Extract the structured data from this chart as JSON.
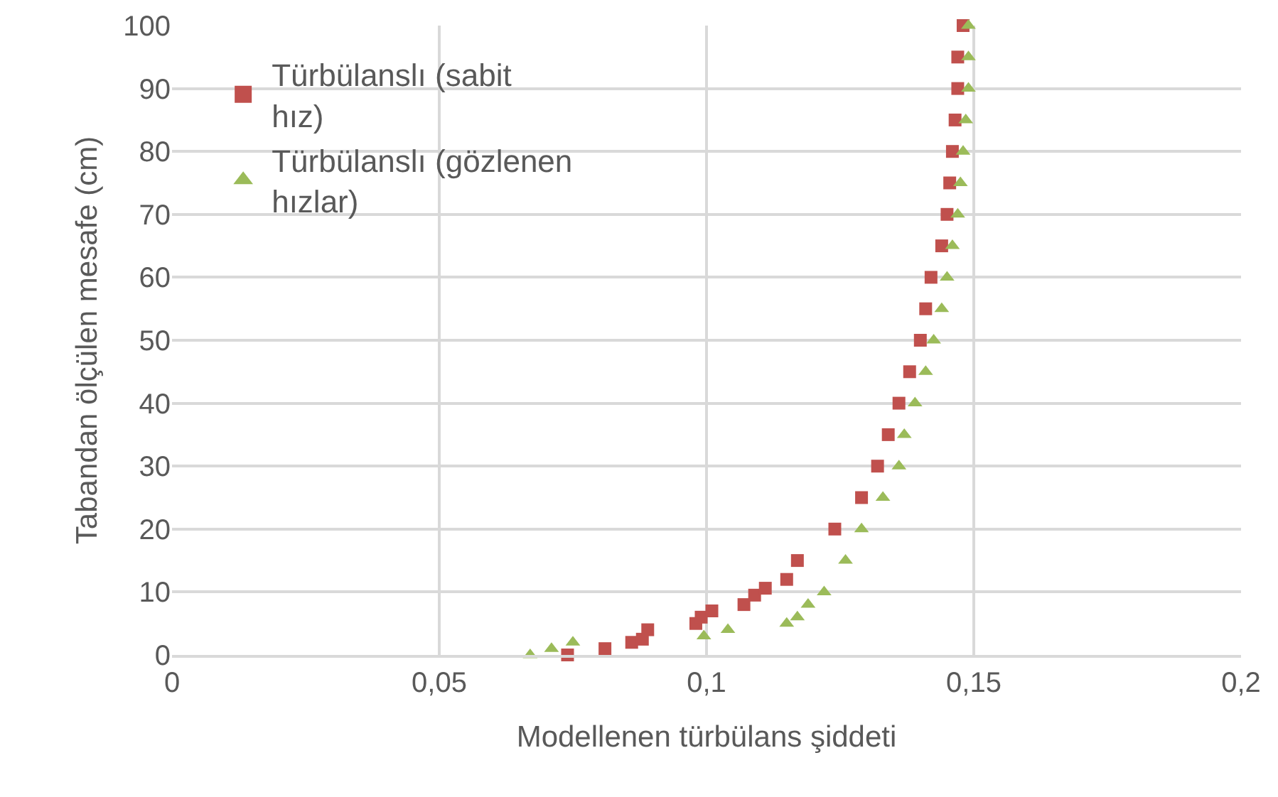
{
  "chart_data": {
    "type": "scatter",
    "xlabel": "Modellenen türbülans şiddeti",
    "ylabel": "Tabandan ölçülen mesafe (cm)",
    "xlim": [
      0,
      0.2
    ],
    "xticks": [
      0,
      {
        "value": 0.05,
        "label": "0,05"
      },
      {
        "value": 0.1,
        "label": "0,1"
      },
      {
        "value": 0.15,
        "label": "0,15"
      },
      {
        "value": 0.2,
        "label": "0,2"
      }
    ],
    "ylim": [
      0,
      100
    ],
    "yticks": [
      0,
      10,
      20,
      30,
      40,
      50,
      60,
      70,
      80,
      90,
      100
    ],
    "grid": true,
    "legend": "top left",
    "series": [
      {
        "name": "Türbülanslı (sabit hız)",
        "color": "#c0504d",
        "marker": "square",
        "x": [
          0.074,
          0.081,
          0.086,
          0.088,
          0.089,
          0.098,
          0.099,
          0.101,
          0.107,
          0.109,
          0.111,
          0.115,
          0.117,
          0.124,
          0.129,
          0.132,
          0.134,
          0.136,
          0.138,
          0.14,
          0.141,
          0.142,
          0.144,
          0.145,
          0.1455,
          0.146,
          0.1465,
          0.147,
          0.147,
          0.148
        ],
        "values": [
          0,
          1,
          2,
          2.5,
          4,
          5,
          6,
          7,
          8,
          9.5,
          10.6,
          12,
          15,
          20,
          25,
          30,
          35,
          40,
          45,
          50,
          55,
          60,
          65,
          70,
          75,
          80,
          85,
          90,
          95,
          100
        ]
      },
      {
        "name": "Türbülanslı (gözlenen hızlar)",
        "color": "#9bbb59",
        "marker": "triangle",
        "x": [
          0.067,
          0.071,
          0.075,
          0.0995,
          0.104,
          0.115,
          0.117,
          0.119,
          0.122,
          0.126,
          0.129,
          0.133,
          0.136,
          0.137,
          0.139,
          0.141,
          0.1425,
          0.144,
          0.145,
          0.146,
          0.147,
          0.1475,
          0.148,
          0.1485,
          0.149,
          0.149,
          0.149
        ],
        "values": [
          0,
          1,
          2,
          3,
          4,
          5,
          6,
          8,
          10,
          15,
          20,
          25,
          30,
          35,
          40,
          45,
          50,
          55,
          60,
          65,
          70,
          75,
          80,
          85,
          90,
          95,
          100
        ]
      }
    ]
  }
}
